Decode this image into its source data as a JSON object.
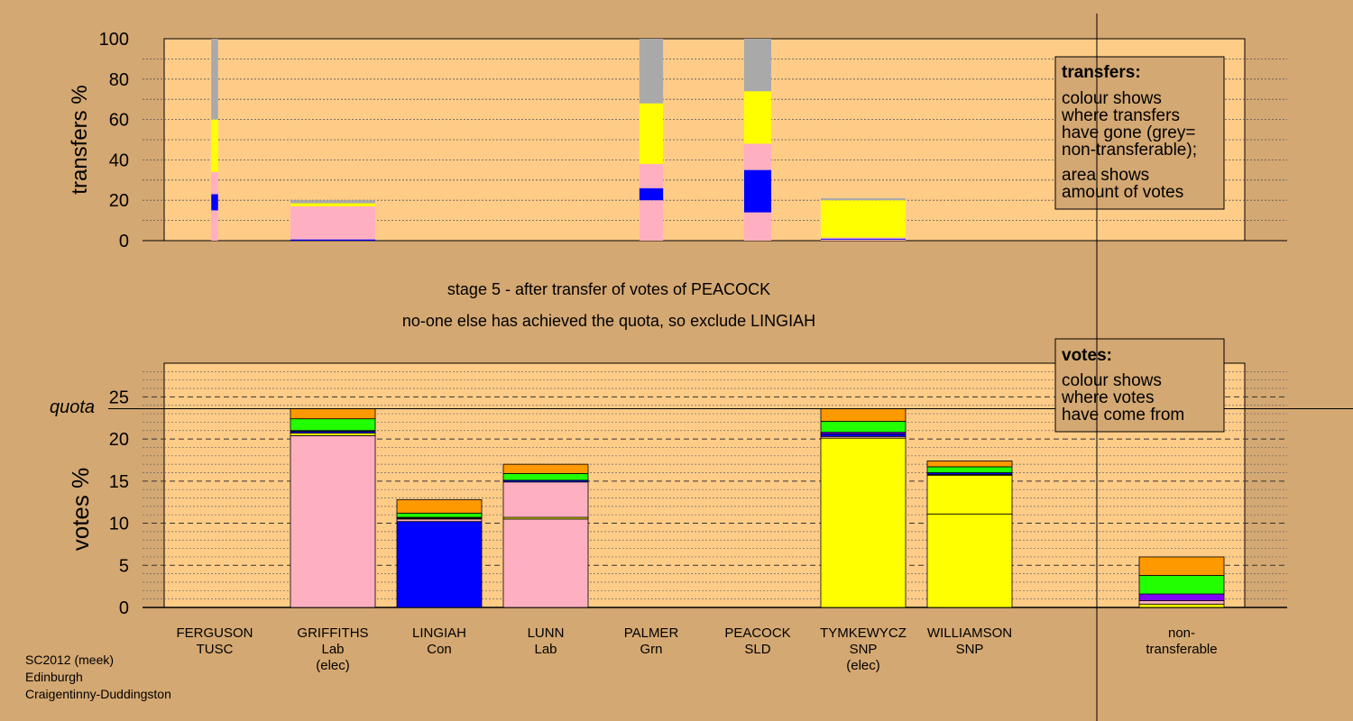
{
  "colors": {
    "background": "#d4a872",
    "plot_bg": "#ffcc88",
    "legend_bg": "#d4a872",
    "lab": "#ffb0c0",
    "con": "#0000ff",
    "snp": "#ffff00",
    "grn": "#22ff00",
    "sld": "#ff9900",
    "tusc": "#7f00ff",
    "nontransferable": "#a9a9a9"
  },
  "stage_title": "stage 5 - after transfer of votes of PEACOCK",
  "stage_subtitle": "no-one else has achieved the quota, so exclude LINGIAH",
  "footer": [
    "SC2012 (meek)",
    "Edinburgh",
    "Craigentinny-Duddingston"
  ],
  "legend_transfers": {
    "title": "transfers:",
    "lines": [
      "colour shows",
      "where transfers",
      "have gone (grey=",
      "non-transferable);"
    ],
    "lines2": [
      "area shows",
      "amount of votes"
    ]
  },
  "legend_votes": {
    "title": "votes:",
    "lines": [
      "colour shows",
      "where votes",
      "have come from"
    ]
  },
  "chart_data": [
    {
      "type": "bar",
      "stacked": true,
      "ylabel": "transfers %",
      "ylim": [
        0,
        100
      ],
      "yticks": [
        0,
        20,
        40,
        60,
        80,
        100
      ],
      "categories": [
        "FERGUSON",
        "GRIFFITHS",
        "LINGIAH",
        "LUNN",
        "PALMER",
        "PEACOCK",
        "TYMKEWYCZ",
        "WILLIAMSON"
      ],
      "bars": [
        {
          "candidate": "FERGUSON",
          "width_share": 0.08,
          "segments": [
            {
              "color": "lab",
              "value": 15
            },
            {
              "color": "con",
              "value": 8
            },
            {
              "color": "lab",
              "value": 11
            },
            {
              "color": "snp",
              "value": 26
            },
            {
              "color": "nontransferable",
              "value": 40
            }
          ]
        },
        {
          "candidate": "GRIFFITHS",
          "width_share": 1.0,
          "segments": [
            {
              "color": "con",
              "value": 0.6
            },
            {
              "color": "lab",
              "value": 16.4
            },
            {
              "color": "snp",
              "value": 1.5
            },
            {
              "color": "nontransferable",
              "value": 1.5
            }
          ]
        },
        {
          "candidate": "PALMER",
          "width_share": 0.28,
          "segments": [
            {
              "color": "lab",
              "value": 20
            },
            {
              "color": "con",
              "value": 6
            },
            {
              "color": "lab",
              "value": 12
            },
            {
              "color": "snp",
              "value": 30
            },
            {
              "color": "nontransferable",
              "value": 32
            }
          ]
        },
        {
          "candidate": "PEACOCK",
          "width_share": 0.32,
          "segments": [
            {
              "color": "lab",
              "value": 14
            },
            {
              "color": "con",
              "value": 21
            },
            {
              "color": "lab",
              "value": 13
            },
            {
              "color": "snp",
              "value": 26
            },
            {
              "color": "nontransferable",
              "value": 26
            }
          ]
        },
        {
          "candidate": "TYMKEWYCZ",
          "width_share": 1.0,
          "segments": [
            {
              "color": "lab",
              "value": 0.5
            },
            {
              "color": "con",
              "value": 0.5
            },
            {
              "color": "lab",
              "value": 0.5
            },
            {
              "color": "snp",
              "value": 18.5
            },
            {
              "color": "nontransferable",
              "value": 1
            }
          ]
        }
      ]
    },
    {
      "type": "bar",
      "stacked": true,
      "ylabel": "votes %",
      "ylim": [
        0,
        29
      ],
      "yticks": [
        0,
        5,
        10,
        15,
        20,
        25
      ],
      "quota": 23.6,
      "quota_label": "quota",
      "categories": [
        "FERGUSON",
        "GRIFFITHS",
        "LINGIAH",
        "LUNN",
        "PALMER",
        "PEACOCK",
        "TYMKEWYCZ",
        "WILLIAMSON",
        "non-transferable"
      ],
      "labels": [
        {
          "name": "FERGUSON",
          "party": "TUSC",
          "elected": ""
        },
        {
          "name": "GRIFFITHS",
          "party": "Lab",
          "elected": "(elec)"
        },
        {
          "name": "LINGIAH",
          "party": "Con",
          "elected": ""
        },
        {
          "name": "LUNN",
          "party": "Lab",
          "elected": ""
        },
        {
          "name": "PALMER",
          "party": "Grn",
          "elected": ""
        },
        {
          "name": "PEACOCK",
          "party": "SLD",
          "elected": ""
        },
        {
          "name": "TYMKEWYCZ",
          "party": "SNP",
          "elected": "(elec)"
        },
        {
          "name": "WILLIAMSON",
          "party": "SNP",
          "elected": ""
        },
        {
          "name": "non-",
          "party": "transferable",
          "elected": ""
        }
      ],
      "bars": [
        {
          "candidate": "GRIFFITHS",
          "segments": [
            {
              "color": "lab",
              "value": 20.4
            },
            {
              "color": "snp",
              "value": 0.3
            },
            {
              "color": "con",
              "value": 0.2
            },
            {
              "color": "tusc",
              "value": 0.1
            },
            {
              "color": "grn",
              "value": 1.4
            },
            {
              "color": "sld",
              "value": 1.2
            }
          ]
        },
        {
          "candidate": "LINGIAH",
          "segments": [
            {
              "color": "con",
              "value": 10.2
            },
            {
              "color": "lab",
              "value": 0.3
            },
            {
              "color": "snp",
              "value": 0.1
            },
            {
              "color": "tusc",
              "value": 0.1
            },
            {
              "color": "grn",
              "value": 0.5
            },
            {
              "color": "sld",
              "value": 1.6
            }
          ]
        },
        {
          "candidate": "LUNN",
          "segments": [
            {
              "color": "lab",
              "value": 10.5
            },
            {
              "color": "snp",
              "value": 0.2
            },
            {
              "color": "lab",
              "value": 4.2
            },
            {
              "color": "con",
              "value": 0.2
            },
            {
              "color": "grn",
              "value": 0.8
            },
            {
              "color": "sld",
              "value": 1.1
            }
          ]
        },
        {
          "candidate": "TYMKEWYCZ",
          "segments": [
            {
              "color": "snp",
              "value": 20.1
            },
            {
              "color": "lab",
              "value": 0.2
            },
            {
              "color": "con",
              "value": 0.3
            },
            {
              "color": "tusc",
              "value": 0.2
            },
            {
              "color": "grn",
              "value": 1.3
            },
            {
              "color": "sld",
              "value": 1.5
            }
          ]
        },
        {
          "candidate": "WILLIAMSON",
          "segments": [
            {
              "color": "snp",
              "value": 11.1
            },
            {
              "color": "snp",
              "value": 4.6
            },
            {
              "color": "lab",
              "value": 0.1
            },
            {
              "color": "con",
              "value": 0.2
            },
            {
              "color": "grn",
              "value": 0.7
            },
            {
              "color": "sld",
              "value": 0.7
            }
          ]
        },
        {
          "candidate": "non-transferable",
          "segments": [
            {
              "color": "snp",
              "value": 0.4
            },
            {
              "color": "lab",
              "value": 0.4
            },
            {
              "color": "tusc",
              "value": 0.8
            },
            {
              "color": "grn",
              "value": 2.2
            },
            {
              "color": "sld",
              "value": 2.2
            }
          ]
        }
      ]
    }
  ]
}
